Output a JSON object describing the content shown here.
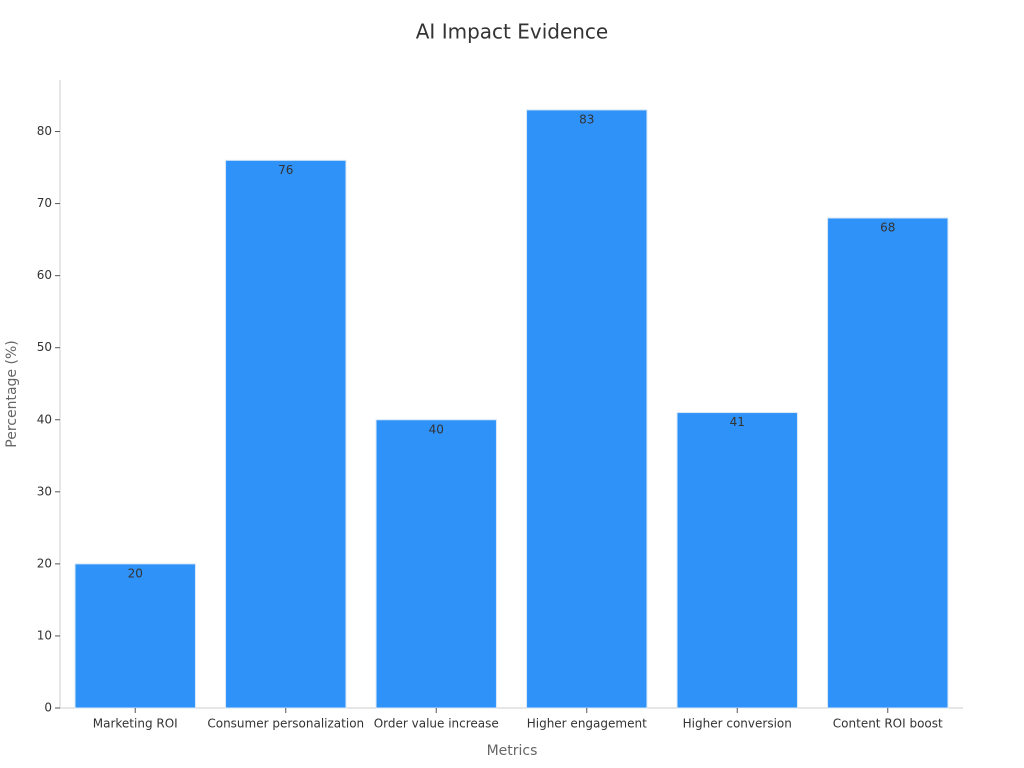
{
  "chart_data": {
    "type": "bar",
    "title": "AI Impact Evidence",
    "x_label": "Metrics",
    "y_label": "Percentage (%)",
    "categories": [
      "Marketing ROI",
      "Consumer personalization",
      "Order value increase",
      "Higher engagement",
      "Higher conversion",
      "Content ROI boost"
    ],
    "values": [
      20,
      76,
      40,
      83,
      41,
      68
    ],
    "color": "#2f92f9",
    "ylim": [
      0,
      87.15
    ],
    "yticks": [
      0,
      10,
      20,
      30,
      40,
      50,
      60,
      70,
      80
    ],
    "grid": false
  }
}
